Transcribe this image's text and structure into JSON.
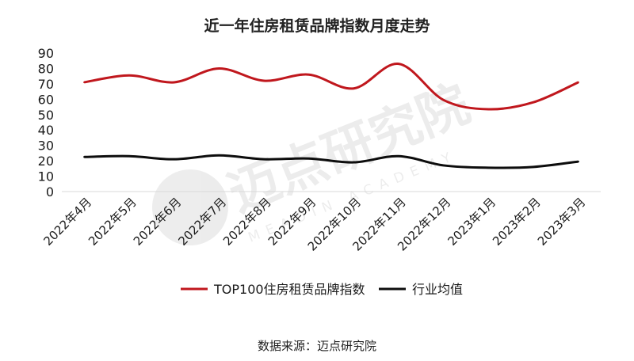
{
  "chart_data": {
    "type": "line",
    "title": "近一年住房租赁品牌指数月度走势",
    "categories": [
      "2022年4月",
      "2022年5月",
      "2022年6月",
      "2022年7月",
      "2022年8月",
      "2022年9月",
      "2022年10月",
      "2022年11月",
      "2022年12月",
      "2023年1月",
      "2023年2月",
      "2023年3月"
    ],
    "series": [
      {
        "name": "TOP100住房租赁品牌指数",
        "color": "#c0171d",
        "values": [
          71,
          75.5,
          71,
          80,
          72,
          76,
          67,
          83,
          59.5,
          53.5,
          58,
          71
        ]
      },
      {
        "name": "行业均值",
        "color": "#0d0d0d",
        "values": [
          22.5,
          23,
          21,
          23.5,
          21,
          21.5,
          19,
          23,
          17,
          15.5,
          16,
          19.5
        ]
      }
    ],
    "yticks": [
      0,
      10,
      20,
      30,
      40,
      50,
      60,
      70,
      80,
      90
    ],
    "ylim": [
      0,
      90
    ],
    "grid": false,
    "legend": "bottom",
    "smooth": true
  },
  "watermark": {
    "text": "迈点研究院",
    "subtext": "MEADIN ACADEMY"
  },
  "source": "数据来源：迈点研究院"
}
